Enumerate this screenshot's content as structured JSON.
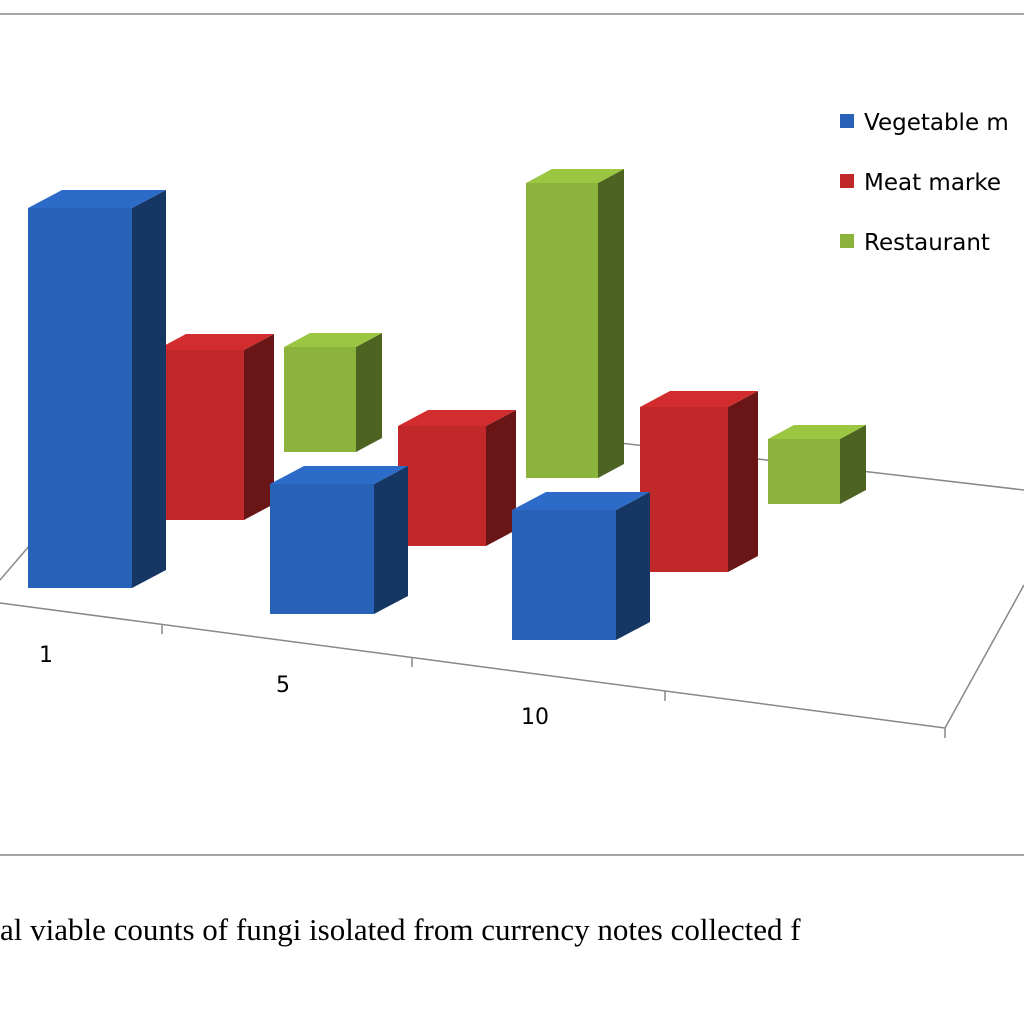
{
  "chart_data": {
    "type": "bar3d",
    "caption": "al viable counts of fungi isolated from currency notes collected f",
    "categories": [
      "1",
      "5",
      "10"
    ],
    "series": [
      {
        "name": "Vegetable m",
        "color": "#2862b6",
        "values": [
          380,
          130,
          130
        ]
      },
      {
        "name": "Meat marke",
        "color": "#c0282a",
        "values": [
          170,
          120,
          165
        ]
      },
      {
        "name": "Restaurant",
        "color": "#8cb43c",
        "values": [
          105,
          295,
          65
        ]
      }
    ]
  }
}
